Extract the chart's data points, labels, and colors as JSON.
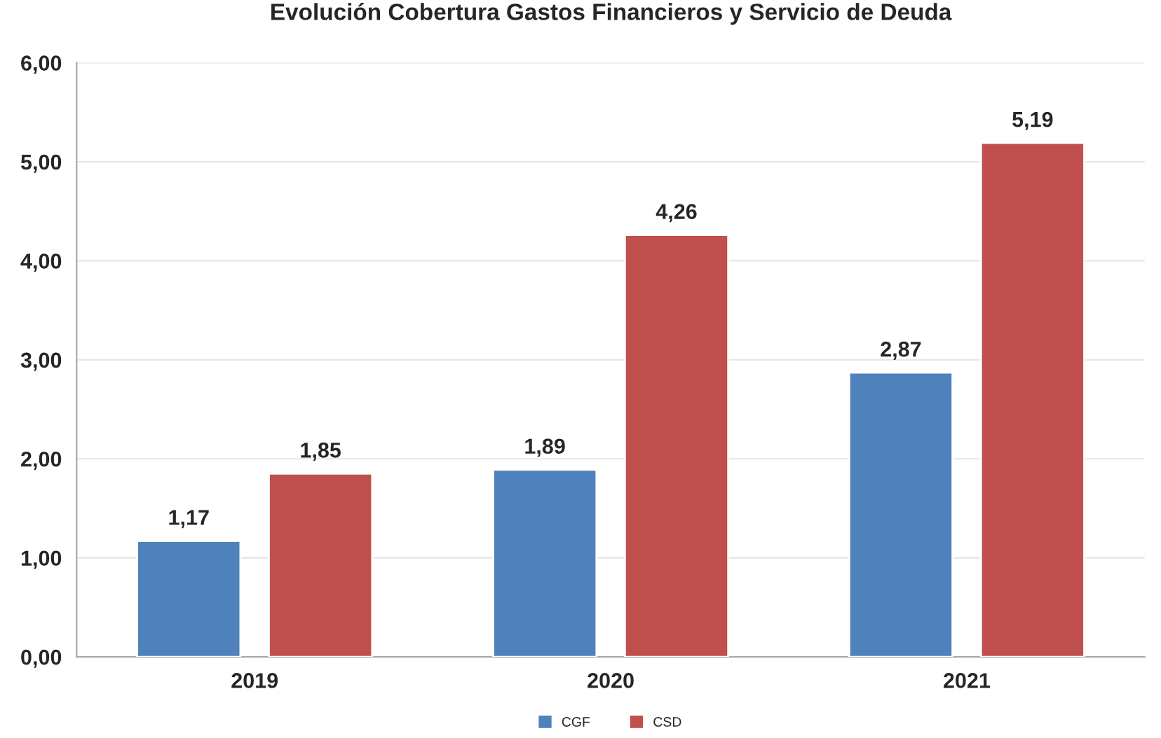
{
  "chart_data": {
    "type": "bar",
    "title": "Evolución Cobertura Gastos Financieros y Servicio de Deuda",
    "categories": [
      "2019",
      "2020",
      "2021"
    ],
    "series": [
      {
        "name": "CGF",
        "color": "#4f81bd",
        "values": [
          1.17,
          1.89,
          2.87
        ],
        "value_labels": [
          "1,17",
          "1,89",
          "2,87"
        ]
      },
      {
        "name": "CSD",
        "color": "#c0504d",
        "values": [
          1.85,
          4.26,
          5.19
        ],
        "value_labels": [
          "1,85",
          "4,26",
          "5,19"
        ]
      }
    ],
    "ylim": [
      0,
      6
    ],
    "yticks": [
      {
        "value": 0,
        "label": "0,00"
      },
      {
        "value": 1,
        "label": "1,00"
      },
      {
        "value": 2,
        "label": "2,00"
      },
      {
        "value": 3,
        "label": "3,00"
      },
      {
        "value": 4,
        "label": "4,00"
      },
      {
        "value": 5,
        "label": "5,00"
      },
      {
        "value": 6,
        "label": "6,00"
      }
    ],
    "grid": "y",
    "legend": "bottom"
  }
}
